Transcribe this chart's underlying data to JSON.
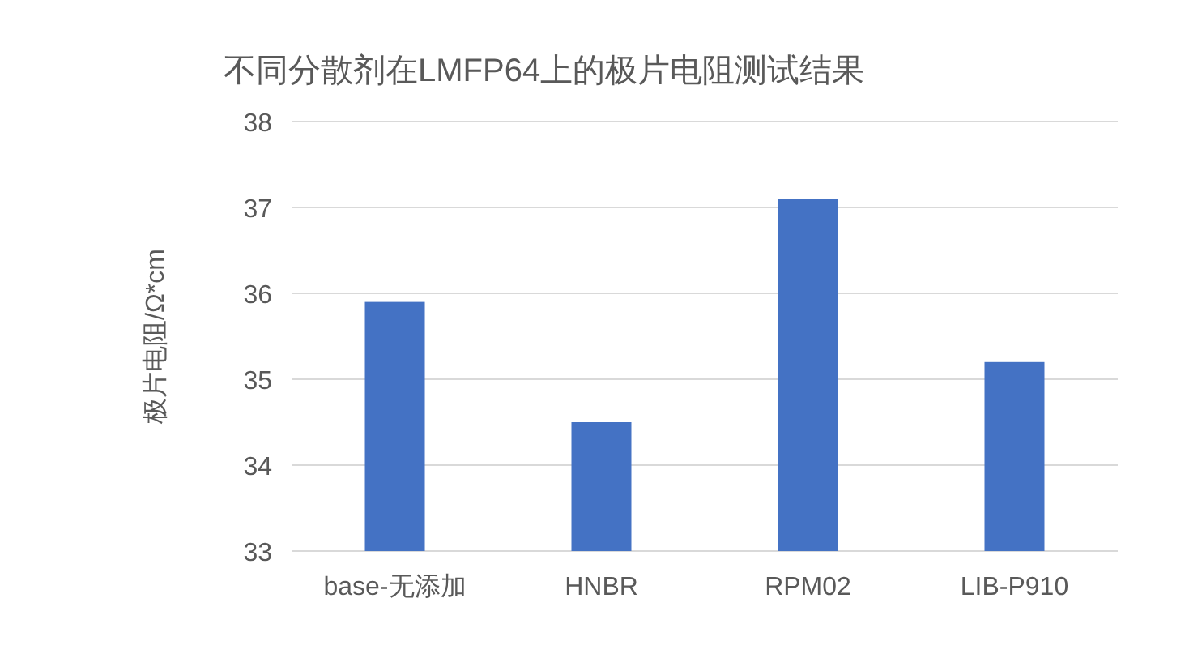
{
  "chart_data": {
    "type": "bar",
    "title": "不同分散剂在LMFP64上的极片电阻测试结果",
    "ylabel": "极片电阻/Ω*cm",
    "categories": [
      "base-无添加",
      "HNBR",
      "RPM02",
      "LIB-P910"
    ],
    "values": [
      35.9,
      34.5,
      37.1,
      35.2
    ],
    "color": "#4472c4",
    "ylim": [
      33,
      38
    ],
    "yticks": [
      33,
      34,
      35,
      36,
      37,
      38
    ],
    "grid": "y"
  }
}
